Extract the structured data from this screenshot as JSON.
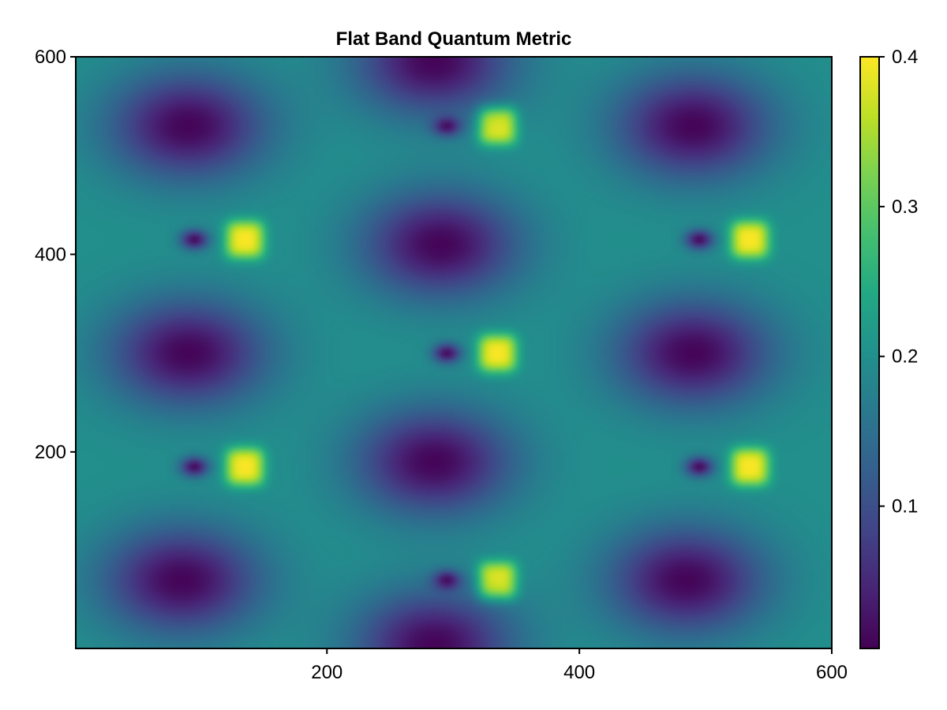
{
  "chart_data": {
    "type": "heatmap",
    "title": "Flat Band Quantum Metric",
    "xlabel": "",
    "ylabel": "",
    "xlim": [
      1,
      600
    ],
    "ylim": [
      1,
      600
    ],
    "x_ticks": [
      200,
      400,
      600
    ],
    "y_ticks": [
      200,
      400,
      600
    ],
    "x_tick_labels": [
      "200",
      "400",
      "600"
    ],
    "y_tick_labels": [
      "200",
      "400",
      "600"
    ],
    "colormap": "viridis",
    "colorbar": {
      "range": [
        0.005,
        0.4
      ],
      "ticks": [
        0.1,
        0.2,
        0.3,
        0.4
      ],
      "tick_labels": [
        "0.1",
        "0.2",
        "0.3",
        "0.4"
      ]
    },
    "background_value": 0.2,
    "features": {
      "low_wells": [
        {
          "x": 90,
          "y": 530
        },
        {
          "x": 285,
          "y": 595
        },
        {
          "x": 490,
          "y": 530
        },
        {
          "x": 290,
          "y": 410
        },
        {
          "x": 90,
          "y": 300
        },
        {
          "x": 490,
          "y": 300
        },
        {
          "x": 285,
          "y": 190
        },
        {
          "x": 85,
          "y": 70
        },
        {
          "x": 485,
          "y": 70
        },
        {
          "x": 285,
          "y": 5
        }
      ],
      "peak_pairs": [
        {
          "dip_x": 295,
          "peak_x": 335,
          "y": 530
        },
        {
          "dip_x": 95,
          "peak_x": 135,
          "y": 415
        },
        {
          "dip_x": 495,
          "peak_x": 535,
          "y": 415
        },
        {
          "dip_x": 295,
          "peak_x": 335,
          "y": 300
        },
        {
          "dip_x": 95,
          "peak_x": 135,
          "y": 185
        },
        {
          "dip_x": 495,
          "peak_x": 535,
          "y": 185
        },
        {
          "dip_x": 295,
          "peak_x": 335,
          "y": 70
        }
      ],
      "peak_value": 0.4,
      "dip_value": 0.02,
      "well_value": 0.01
    }
  }
}
